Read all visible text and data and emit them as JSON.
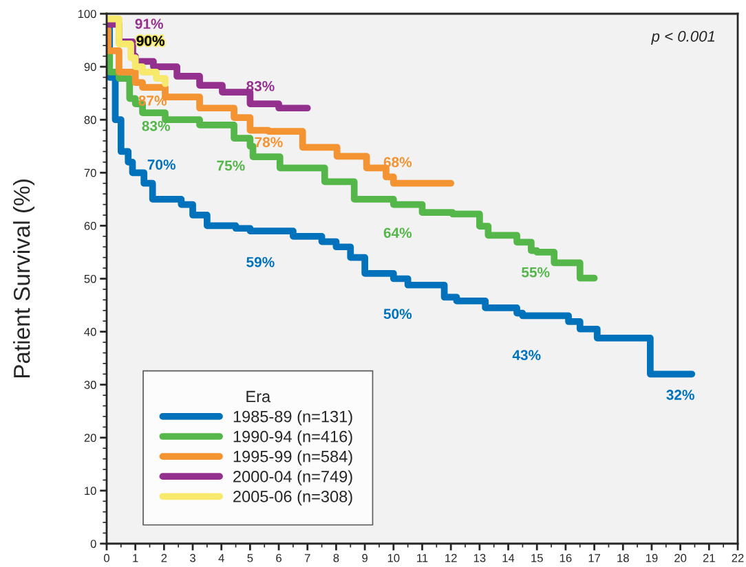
{
  "chart_data": {
    "type": "step",
    "ylabel": "Patient Survival (%)",
    "legend_title": "Era",
    "legend": "bottom left",
    "grid": false,
    "xlim": [
      0,
      22
    ],
    "xticks": [
      0,
      1,
      2,
      3,
      4,
      5,
      6,
      7,
      8,
      9,
      10,
      11,
      12,
      13,
      14,
      15,
      16,
      17,
      18,
      19,
      20,
      21,
      22
    ],
    "ylim": [
      0,
      100
    ],
    "yticks": [
      0,
      10,
      20,
      30,
      40,
      50,
      60,
      70,
      80,
      90,
      100
    ],
    "series": [
      {
        "name": "1985-89 (n=131)",
        "color": "#0072bc",
        "x": [
          0,
          0.1,
          0.3,
          0.5,
          0.75,
          0.9,
          1,
          1.3,
          1.6,
          2.6,
          3.0,
          3.5,
          4.5,
          5.0,
          6.5,
          7.5,
          8.0,
          8.5,
          9.0,
          10.0,
          10.5,
          11.77,
          12.2,
          13.2,
          14.3,
          14.5,
          15,
          16.1,
          16.5,
          17.1,
          18.95,
          20,
          20.4
        ],
        "values": [
          98,
          88,
          80,
          74,
          72,
          70,
          70,
          68,
          65,
          64,
          62,
          60,
          59.5,
          59,
          58,
          57,
          56,
          54,
          51,
          50,
          48.8,
          46.5,
          45.8,
          44.5,
          43.5,
          43,
          43,
          41.9,
          40.5,
          38.8,
          32,
          32,
          32
        ],
        "value_labels": [
          null,
          null,
          null,
          null,
          null,
          null,
          "70%",
          null,
          null,
          null,
          null,
          null,
          null,
          "59%",
          null,
          null,
          null,
          null,
          null,
          "50%",
          null,
          null,
          null,
          null,
          null,
          null,
          "43%",
          null,
          null,
          null,
          null,
          "32%",
          null
        ]
      },
      {
        "name": "1990-94 (n=416)",
        "color": "#55b74a",
        "x": [
          0,
          0.1,
          0.43,
          0.8,
          1,
          1.25,
          2.04,
          3.24,
          4.44,
          5,
          5.1,
          6.04,
          7.6,
          8.63,
          10,
          11.0,
          12.06,
          13.0,
          13.3,
          14.3,
          14.8,
          15,
          15.6,
          16.5,
          17.0
        ],
        "values": [
          93,
          89,
          87.8,
          84,
          83,
          81.3,
          80,
          79,
          76.5,
          75,
          73,
          70.9,
          68.3,
          65,
          64,
          62.5,
          62.2,
          59.9,
          58.2,
          56.9,
          55.3,
          55,
          53,
          50.1,
          50.1
        ],
        "value_labels": [
          null,
          null,
          null,
          null,
          "83%",
          null,
          null,
          null,
          null,
          "75%",
          null,
          null,
          null,
          null,
          "64%",
          null,
          null,
          null,
          null,
          null,
          null,
          "55%",
          null,
          null,
          null
        ]
      },
      {
        "name": "1995-99 (n=584)",
        "color": "#f39332",
        "x": [
          0,
          0.05,
          0.43,
          1,
          1.25,
          2.04,
          3.24,
          4.44,
          5,
          5.64,
          6.83,
          8.03,
          9.06,
          9.74,
          10.0,
          12.0
        ],
        "values": [
          97,
          93,
          89,
          87,
          86.1,
          84.3,
          82.2,
          80.4,
          78,
          77.8,
          74.8,
          73.1,
          70.9,
          69.2,
          68,
          68
        ],
        "value_labels": [
          null,
          null,
          null,
          "87%",
          null,
          null,
          null,
          null,
          "78%",
          null,
          null,
          null,
          null,
          null,
          "68%",
          null
        ]
      },
      {
        "name": "2000-04 (n=749)",
        "color": "#94318f",
        "x": [
          0,
          0.43,
          0.91,
          1,
          1.63,
          2.45,
          3.24,
          4.03,
          5,
          6.0,
          7.0
        ],
        "values": [
          98,
          94.7,
          92,
          91,
          90,
          88.2,
          86.5,
          85.2,
          83,
          82.2,
          82.2
        ],
        "value_labels": [
          null,
          null,
          null,
          "91%",
          null,
          null,
          null,
          null,
          "83%",
          null,
          null
        ]
      },
      {
        "name": "2005-06 (n=308)",
        "color": "#f7e96b",
        "x": [
          0,
          0.43,
          0.84,
          1,
          1.25,
          1.73,
          2.04
        ],
        "values": [
          99,
          94.3,
          91.7,
          90,
          89,
          87.8,
          86.8
        ],
        "value_labels": [
          null,
          null,
          null,
          "90%",
          null,
          null,
          null
        ]
      }
    ],
    "annotations": [
      "p < 0.001"
    ]
  }
}
